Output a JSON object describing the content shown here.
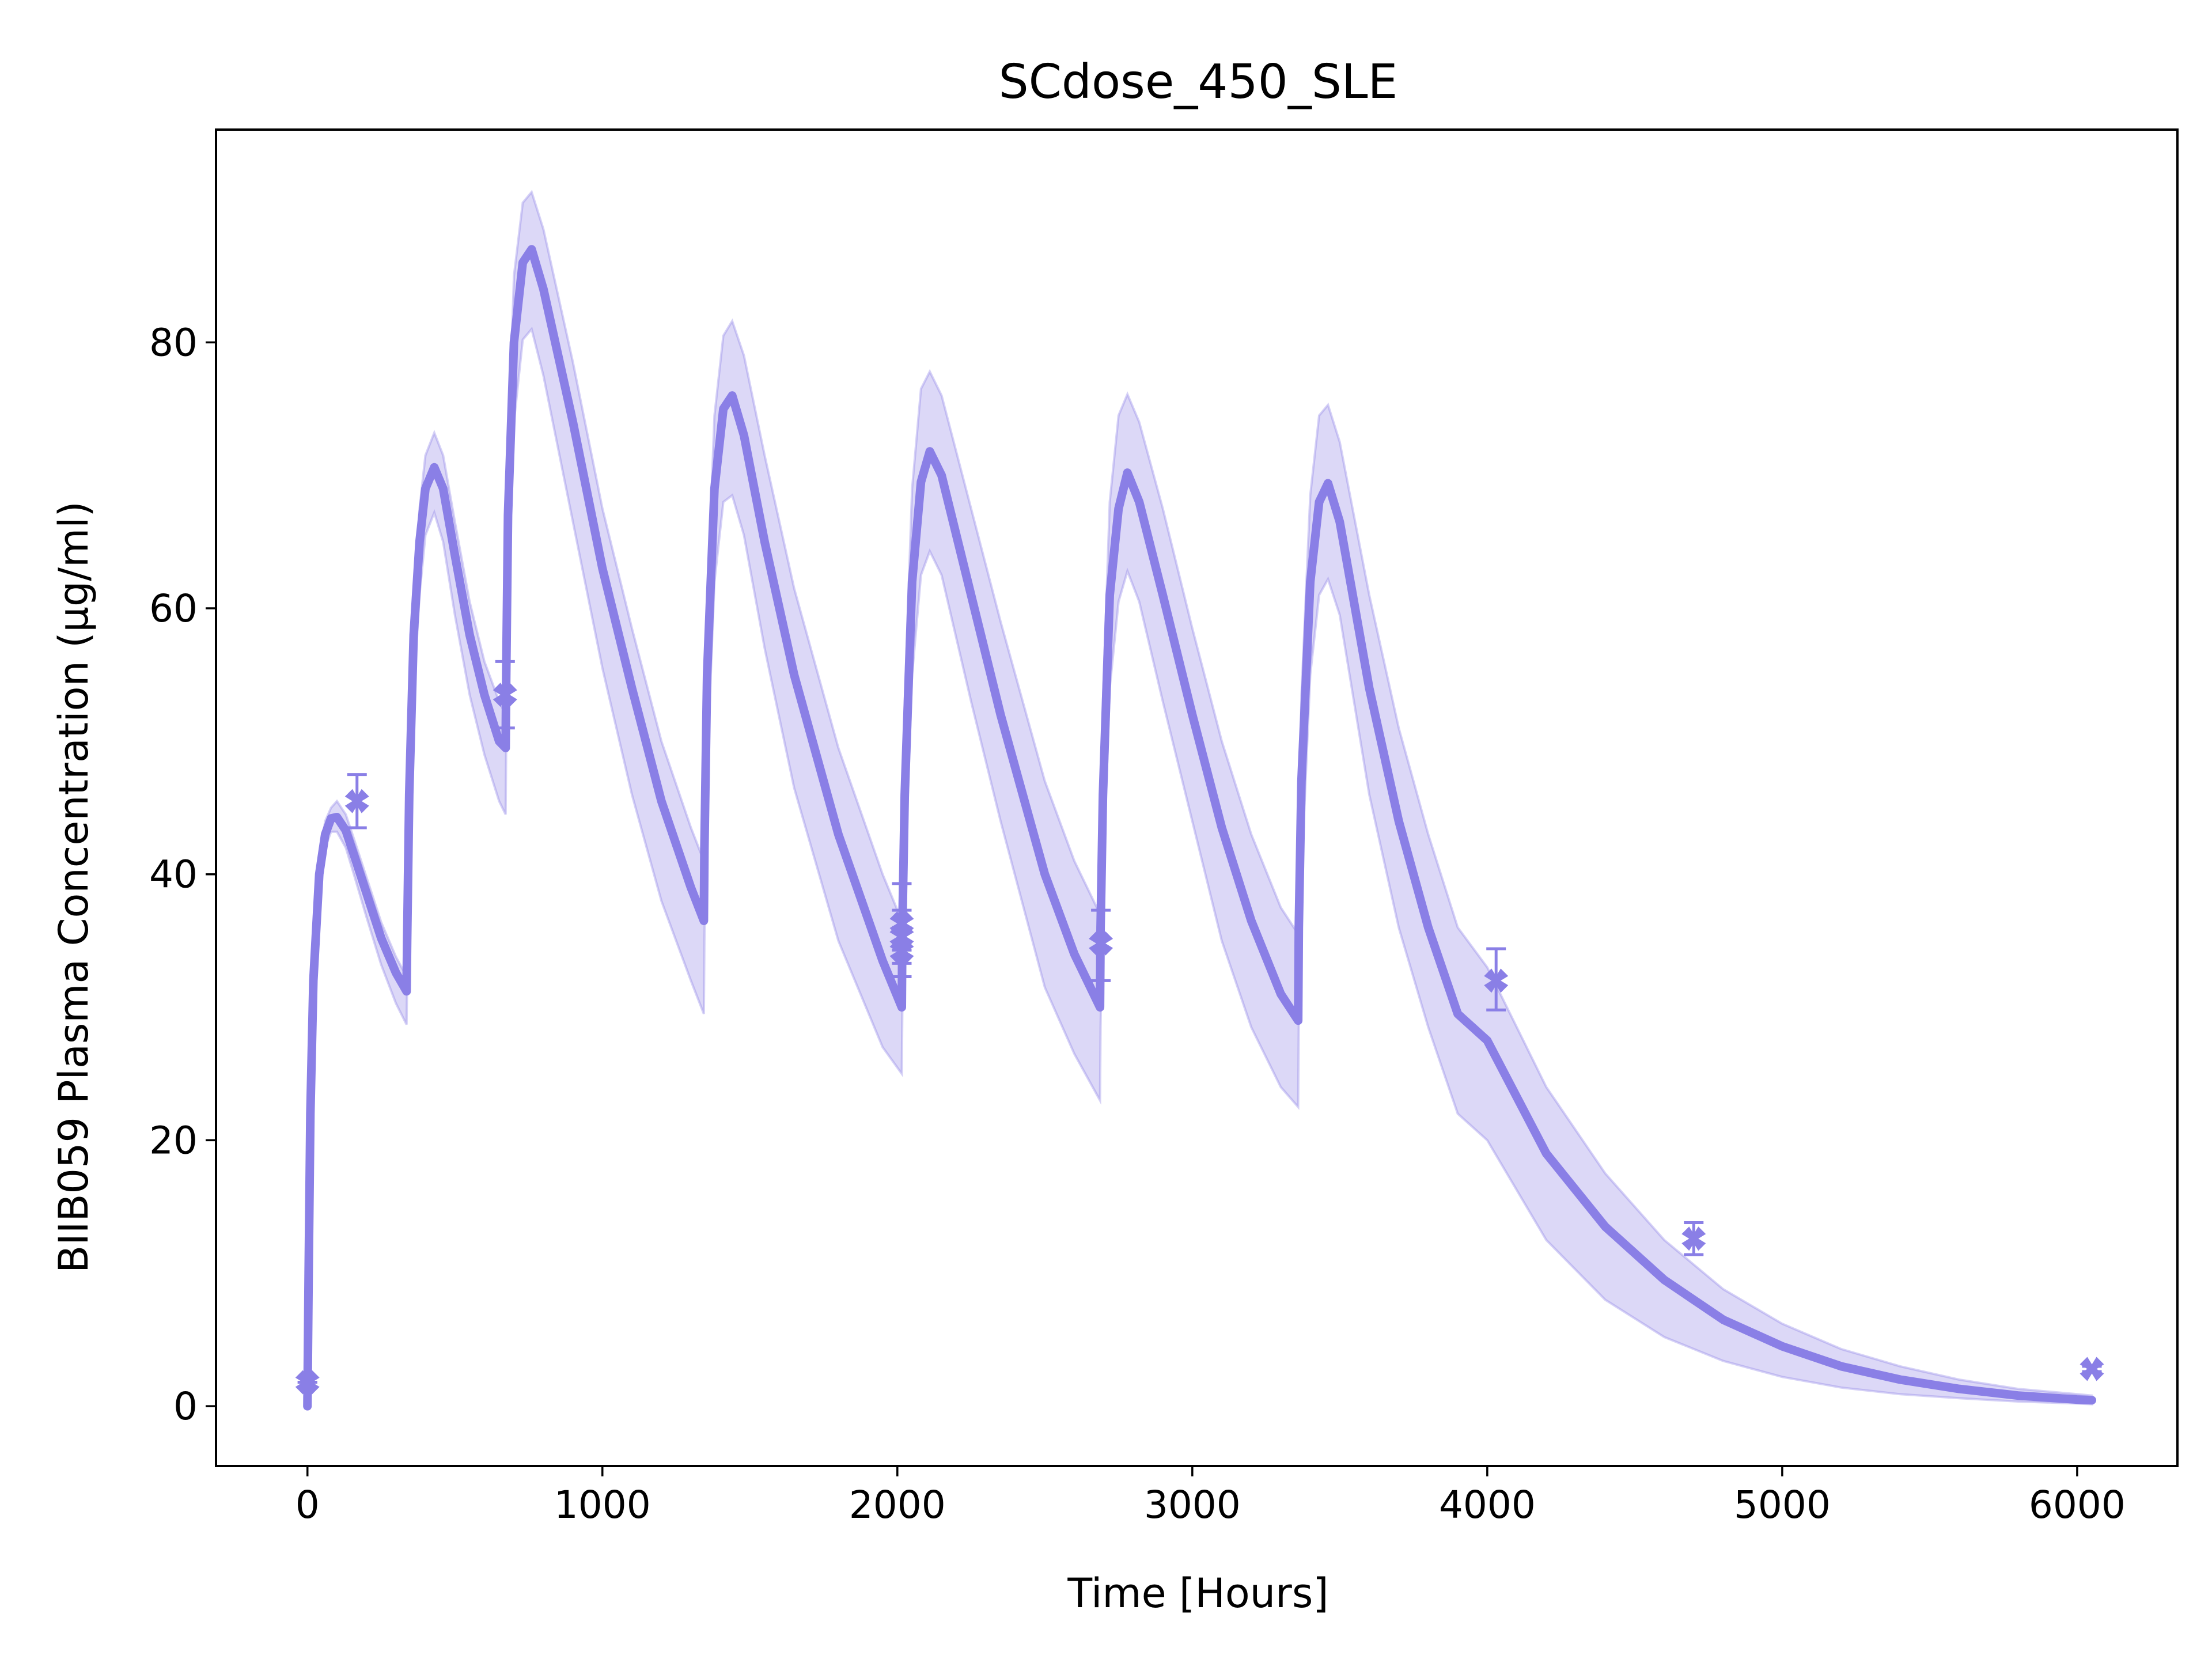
{
  "chart_data": {
    "type": "line",
    "title": "SCdose_450_SLE",
    "xlabel": "Time [Hours]",
    "ylabel": "BIIB059 Plasma Concentration (µg/ml)",
    "xlim": [
      -310,
      6340
    ],
    "ylim": [
      -4.5,
      96
    ],
    "xticks": [
      0,
      1000,
      2000,
      3000,
      4000,
      5000,
      6000
    ],
    "yticks": [
      0,
      20,
      40,
      60,
      80
    ],
    "grid": false,
    "legend": "none",
    "colors": {
      "line": "#8a7fe6",
      "band": "#8a7fe6",
      "marker": "#8a7fe6"
    },
    "model_curve": {
      "x": [
        0,
        4,
        10,
        20,
        40,
        60,
        80,
        100,
        130,
        160,
        200,
        250,
        300,
        336,
        338,
        345,
        360,
        380,
        400,
        430,
        460,
        500,
        550,
        600,
        650,
        672,
        674,
        680,
        700,
        730,
        760,
        800,
        900,
        1000,
        1100,
        1200,
        1300,
        1344,
        1346,
        1355,
        1380,
        1410,
        1440,
        1480,
        1550,
        1650,
        1800,
        1950,
        2015,
        2017,
        2025,
        2050,
        2080,
        2110,
        2150,
        2250,
        2350,
        2500,
        2600,
        2687,
        2689,
        2697,
        2720,
        2750,
        2780,
        2820,
        2900,
        3000,
        3100,
        3200,
        3300,
        3359,
        3361,
        3370,
        3400,
        3430,
        3460,
        3500,
        3600,
        3700,
        3800,
        3900,
        4000,
        4200,
        4400,
        4600,
        4800,
        5000,
        5200,
        5400,
        5600,
        5800,
        6000,
        6050
      ],
      "y": [
        0,
        10,
        22,
        32,
        40,
        43,
        44.2,
        44.3,
        43.3,
        41.3,
        38.6,
        35.2,
        32.6,
        31.2,
        35,
        46,
        58,
        65,
        69,
        70.6,
        69,
        64,
        58,
        53.5,
        50,
        49.5,
        55,
        67,
        80,
        86,
        87,
        84,
        74,
        63,
        54,
        45.5,
        39,
        36.5,
        42,
        55,
        69,
        75,
        76,
        73,
        65,
        55,
        43,
        33.5,
        30,
        36,
        46,
        62,
        69.5,
        71.8,
        70,
        61,
        52,
        40,
        34,
        30,
        36,
        46,
        61,
        67.5,
        70.2,
        68,
        61,
        52,
        43.5,
        36.5,
        31,
        29,
        36,
        47,
        62,
        68,
        69.4,
        66.5,
        54,
        44,
        36,
        29.5,
        27.5,
        19,
        13.5,
        9.5,
        6.5,
        4.5,
        3.0,
        2.0,
        1.3,
        0.8,
        0.5,
        0.45
      ]
    },
    "band_upper": {
      "x": [
        0,
        4,
        10,
        20,
        40,
        60,
        80,
        100,
        130,
        160,
        200,
        250,
        300,
        336,
        338,
        345,
        360,
        380,
        400,
        430,
        460,
        500,
        550,
        600,
        650,
        672,
        674,
        680,
        700,
        730,
        760,
        800,
        900,
        1000,
        1100,
        1200,
        1300,
        1344,
        1346,
        1355,
        1380,
        1410,
        1440,
        1480,
        1550,
        1650,
        1800,
        1950,
        2015,
        2017,
        2025,
        2050,
        2080,
        2110,
        2150,
        2250,
        2350,
        2500,
        2600,
        2687,
        2689,
        2697,
        2720,
        2750,
        2780,
        2820,
        2900,
        3000,
        3100,
        3200,
        3300,
        3359,
        3361,
        3370,
        3400,
        3430,
        3460,
        3500,
        3600,
        3700,
        3800,
        3900,
        4000,
        4200,
        4400,
        4600,
        4800,
        5000,
        5200,
        5400,
        5600,
        5800,
        6000,
        6050
      ],
      "y": [
        0,
        11,
        23,
        33,
        41,
        44,
        45,
        45.5,
        44.5,
        42.5,
        39.8,
        36.4,
        33.8,
        32.3,
        36.5,
        48,
        60,
        67.5,
        71.5,
        73.2,
        71.5,
        66.5,
        60.5,
        56,
        53,
        52,
        58,
        71,
        85,
        90.5,
        91.3,
        88.5,
        78.5,
        67.5,
        58.5,
        50,
        43.5,
        41,
        46.5,
        60,
        74.5,
        80.5,
        81.6,
        79,
        71.5,
        61.5,
        49.5,
        40,
        36.5,
        42.5,
        53,
        69,
        76.5,
        77.8,
        76,
        67.5,
        59,
        47,
        41,
        37,
        43,
        53,
        68,
        74.5,
        76.1,
        74,
        67.5,
        58.5,
        50,
        43,
        37.5,
        35.5,
        42.5,
        53.5,
        68.5,
        74.5,
        75.3,
        72.5,
        61,
        51,
        43,
        36,
        33,
        24,
        17.5,
        12.5,
        8.8,
        6.2,
        4.3,
        3.0,
        2.0,
        1.3,
        0.9,
        0.8
      ]
    },
    "band_lower": {
      "x": [
        0,
        4,
        10,
        20,
        40,
        60,
        80,
        100,
        130,
        160,
        200,
        250,
        300,
        336,
        338,
        345,
        360,
        380,
        400,
        430,
        460,
        500,
        550,
        600,
        650,
        672,
        674,
        680,
        700,
        730,
        760,
        800,
        900,
        1000,
        1100,
        1200,
        1300,
        1344,
        1346,
        1355,
        1380,
        1410,
        1440,
        1480,
        1550,
        1650,
        1800,
        1950,
        2015,
        2017,
        2025,
        2050,
        2080,
        2110,
        2150,
        2250,
        2350,
        2500,
        2600,
        2687,
        2689,
        2697,
        2720,
        2750,
        2780,
        2820,
        2900,
        3000,
        3100,
        3200,
        3300,
        3359,
        3361,
        3370,
        3400,
        3430,
        3460,
        3500,
        3600,
        3700,
        3800,
        3900,
        4000,
        4200,
        4400,
        4600,
        4800,
        5000,
        5200,
        5400,
        5600,
        5800,
        6000,
        6050
      ],
      "y": [
        0,
        9,
        20.5,
        30.5,
        38.5,
        42,
        43.2,
        43.2,
        42,
        39.8,
        36.8,
        33.2,
        30.3,
        28.7,
        32,
        42,
        53.5,
        61,
        65.5,
        67.2,
        65,
        59.5,
        53.5,
        49,
        45.5,
        44.5,
        50,
        62,
        74,
        80.2,
        81,
        77.5,
        66.5,
        55.5,
        46,
        38,
        32,
        29.5,
        35,
        48,
        62,
        68,
        68.5,
        65.5,
        57,
        46.5,
        35,
        27,
        25,
        30,
        39,
        55,
        62.5,
        64.3,
        62.5,
        53,
        44,
        31.5,
        26.5,
        23,
        28.5,
        39,
        54,
        60.5,
        62.8,
        60.5,
        53,
        44,
        35,
        28.5,
        24,
        22.5,
        29,
        40,
        55,
        61,
        62.2,
        59.5,
        46,
        36,
        28.5,
        22,
        20,
        12.5,
        8,
        5.2,
        3.4,
        2.2,
        1.4,
        0.9,
        0.6,
        0.35,
        0.2,
        0.15
      ]
    },
    "observed": {
      "x": [
        0,
        168,
        670,
        2015,
        2015,
        2015,
        2690,
        4030,
        4700,
        6050
      ],
      "y": [
        1.8,
        45.5,
        53.5,
        34.2,
        35.3,
        36.3,
        34.8,
        32.0,
        12.6,
        2.8
      ],
      "err_low": [
        1.8,
        43.5,
        51.0,
        32.3,
        33.3,
        34.3,
        32.0,
        29.8,
        11.4,
        2.6
      ],
      "err_high": [
        1.8,
        47.5,
        56.0,
        36.0,
        37.3,
        39.3,
        37.3,
        34.4,
        13.8,
        3.0
      ],
      "marker": "x-filled"
    }
  }
}
